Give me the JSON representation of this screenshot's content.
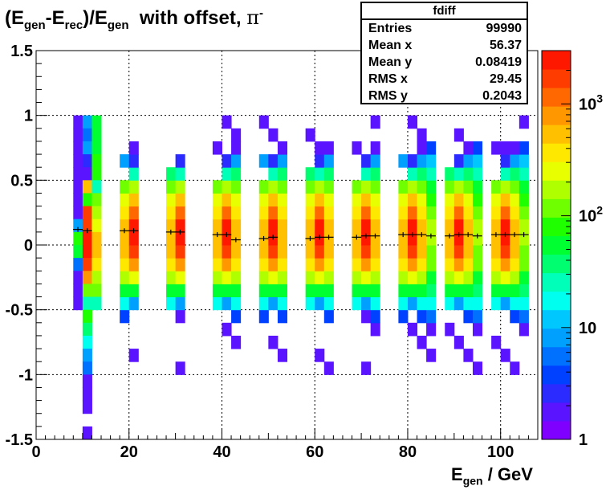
{
  "title": {
    "part1": "(E",
    "sub_gen1": "gen",
    "part2": "-E",
    "sub_rec": "rec",
    "part3": ")/E",
    "sub_gen2": "gen",
    "part4": "  with offset,",
    "pi": "π",
    "sup_minus": "-"
  },
  "x_axis_label": {
    "main": "E",
    "sub": "gen",
    "rest": " / GeV"
  },
  "stats_box": {
    "name": "fdiff",
    "rows": [
      {
        "key": "Entries",
        "value": "99990"
      },
      {
        "key": "Mean x",
        "value": "56.37"
      },
      {
        "key": "Mean y",
        "value": "0.08419"
      },
      {
        "key": "RMS x",
        "value": "29.45"
      },
      {
        "key": "RMS y",
        "value": "0.2043"
      }
    ]
  },
  "colors": {
    "palette": [
      "#7f00ff",
      "#5a14ff",
      "#2b2bff",
      "#0040ff",
      "#0070ff",
      "#00a0ff",
      "#00c8ff",
      "#00ffee",
      "#00ffb8",
      "#00ff70",
      "#00ff30",
      "#20ff00",
      "#70ff00",
      "#b0ff00",
      "#e8ff00",
      "#ffe800",
      "#ffc000",
      "#ff9800",
      "#ff6800",
      "#ff3c00",
      "#ff1800"
    ],
    "axes": "#000000",
    "grid": "#000000",
    "profile_marker": "#000000"
  },
  "chart_data": {
    "type": "heatmap",
    "xlim": [
      0,
      108
    ],
    "ylim": [
      -1.5,
      1.5
    ],
    "x_ticks": [
      "0",
      "20",
      "40",
      "60",
      "80",
      "100"
    ],
    "y_ticks": [
      "-1.5",
      "-1",
      "-0.5",
      "0",
      "0.5",
      "1",
      "1.5"
    ],
    "z_scale": "log",
    "z_range": [
      1,
      3000
    ],
    "z_ticks": [
      "1",
      "10",
      "10^2",
      "10^3"
    ],
    "grid": true,
    "bin_width_x": 2,
    "bin_height_y": 0.1,
    "column_levels": {
      "bottom_bin_centers": [
        -0.75,
        -0.25,
        -0.55,
        -0.15,
        0.95,
        0.55,
        0.15,
        -0.35
      ],
      "offsets": [
        0,
        0,
        0,
        0,
        0,
        0,
        0,
        0
      ]
    },
    "energy_columns": [
      {
        "x_center": 10.5,
        "bins_x": [
          9,
          11,
          13
        ]
      },
      {
        "x_center": 20.5,
        "bins_x": [
          19,
          21
        ]
      },
      {
        "x_center": 30.5,
        "bins_x": [
          29,
          31
        ]
      },
      {
        "x_center": 40.5,
        "bins_x": [
          39,
          41,
          43
        ]
      },
      {
        "x_center": 50.5,
        "bins_x": [
          49,
          51,
          53
        ]
      },
      {
        "x_center": 60.5,
        "bins_x": [
          59,
          61,
          63
        ]
      },
      {
        "x_center": 70.5,
        "bins_x": [
          69,
          71,
          73
        ]
      },
      {
        "x_center": 80.5,
        "bins_x": [
          79,
          81,
          83,
          85
        ]
      },
      {
        "x_center": 90.5,
        "bins_x": [
          89,
          91,
          93,
          95
        ]
      },
      {
        "x_center": 100.5,
        "bins_x": [
          99,
          101,
          103,
          105
        ]
      }
    ],
    "cells": [
      {
        "x": 9,
        "y": 0.95,
        "z": 1.5
      },
      {
        "x": 9,
        "y": 0.85,
        "z": 1.5
      },
      {
        "x": 9,
        "y": 0.75,
        "z": 1.5
      },
      {
        "x": 9,
        "y": 0.65,
        "z": 1.5
      },
      {
        "x": 9,
        "y": 0.55,
        "z": 1.5
      },
      {
        "x": 9,
        "y": 0.45,
        "z": 2
      },
      {
        "x": 9,
        "y": 0.35,
        "z": 2
      },
      {
        "x": 9,
        "y": 0.25,
        "z": 1.5
      },
      {
        "x": 9,
        "y": 0.15,
        "z": 8
      },
      {
        "x": 9,
        "y": 0.05,
        "z": 80
      },
      {
        "x": 9,
        "y": -0.05,
        "z": 60
      },
      {
        "x": 9,
        "y": -0.15,
        "z": 5
      },
      {
        "x": 9,
        "y": -0.25,
        "z": 2
      },
      {
        "x": 9,
        "y": -0.35,
        "z": 1.5
      },
      {
        "x": 9,
        "y": -0.45,
        "z": 1.5
      },
      {
        "x": 11,
        "y": 0.95,
        "z": 8
      },
      {
        "x": 11,
        "y": 0.85,
        "z": 5
      },
      {
        "x": 11,
        "y": 0.75,
        "z": 8
      },
      {
        "x": 11,
        "y": 0.65,
        "z": 3
      },
      {
        "x": 11,
        "y": 0.55,
        "z": 1.5
      },
      {
        "x": 11,
        "y": 0.45,
        "z": 600
      },
      {
        "x": 11,
        "y": 0.35,
        "z": 80
      },
      {
        "x": 11,
        "y": 0.25,
        "z": 1500
      },
      {
        "x": 11,
        "y": 0.15,
        "z": 2000
      },
      {
        "x": 11,
        "y": 0.05,
        "z": 2500
      },
      {
        "x": 11,
        "y": -0.05,
        "z": 2200
      },
      {
        "x": 11,
        "y": -0.15,
        "z": 1800
      },
      {
        "x": 11,
        "y": -0.25,
        "z": 800
      },
      {
        "x": 11,
        "y": -0.35,
        "z": 120
      },
      {
        "x": 11,
        "y": -0.45,
        "z": 30
      },
      {
        "x": 11,
        "y": -0.55,
        "z": 80
      },
      {
        "x": 11,
        "y": -0.65,
        "z": 40
      },
      {
        "x": 11,
        "y": -0.75,
        "z": 20
      },
      {
        "x": 11,
        "y": -0.85,
        "z": 8
      },
      {
        "x": 11,
        "y": -0.95,
        "z": 5
      },
      {
        "x": 11,
        "y": -1.05,
        "z": 2
      },
      {
        "x": 11,
        "y": -1.15,
        "z": 1.5
      },
      {
        "x": 11,
        "y": -1.25,
        "z": 1.5
      },
      {
        "x": 11,
        "y": -1.45,
        "z": 1.5
      },
      {
        "x": 13,
        "y": 0.95,
        "z": 60
      },
      {
        "x": 13,
        "y": 0.85,
        "z": 50
      },
      {
        "x": 13,
        "y": 0.75,
        "z": 60
      },
      {
        "x": 13,
        "y": 0.65,
        "z": 70
      },
      {
        "x": 13,
        "y": 0.55,
        "z": 90
      },
      {
        "x": 13,
        "y": 0.45,
        "z": 30
      },
      {
        "x": 13,
        "y": 0.35,
        "z": 100
      },
      {
        "x": 13,
        "y": 0.25,
        "z": 150
      },
      {
        "x": 13,
        "y": 0.15,
        "z": 300
      },
      {
        "x": 13,
        "y": 0.05,
        "z": 500
      },
      {
        "x": 13,
        "y": -0.05,
        "z": 600
      },
      {
        "x": 13,
        "y": -0.15,
        "z": 400
      },
      {
        "x": 13,
        "y": -0.25,
        "z": 200
      },
      {
        "x": 13,
        "y": -0.35,
        "z": 100
      },
      {
        "x": 13,
        "y": -0.45,
        "z": 30
      }
    ],
    "profile_points": [
      {
        "x": 9,
        "y": 0.12
      },
      {
        "x": 11,
        "y": 0.11
      },
      {
        "x": 19,
        "y": 0.11
      },
      {
        "x": 21,
        "y": 0.11
      },
      {
        "x": 29,
        "y": 0.1
      },
      {
        "x": 31,
        "y": 0.1
      },
      {
        "x": 39,
        "y": 0.08
      },
      {
        "x": 41,
        "y": 0.08
      },
      {
        "x": 43,
        "y": 0.04
      },
      {
        "x": 49,
        "y": 0.05
      },
      {
        "x": 51,
        "y": 0.06
      },
      {
        "x": 59,
        "y": 0.05
      },
      {
        "x": 61,
        "y": 0.06
      },
      {
        "x": 63,
        "y": 0.06
      },
      {
        "x": 69,
        "y": 0.06
      },
      {
        "x": 71,
        "y": 0.07
      },
      {
        "x": 73,
        "y": 0.07
      },
      {
        "x": 79,
        "y": 0.08
      },
      {
        "x": 81,
        "y": 0.08
      },
      {
        "x": 83,
        "y": 0.08
      },
      {
        "x": 85,
        "y": 0.07
      },
      {
        "x": 89,
        "y": 0.07
      },
      {
        "x": 91,
        "y": 0.08
      },
      {
        "x": 93,
        "y": 0.08
      },
      {
        "x": 95,
        "y": 0.07
      },
      {
        "x": 99,
        "y": 0.08
      },
      {
        "x": 101,
        "y": 0.08
      },
      {
        "x": 103,
        "y": 0.08
      },
      {
        "x": 105,
        "y": 0.08
      }
    ]
  }
}
